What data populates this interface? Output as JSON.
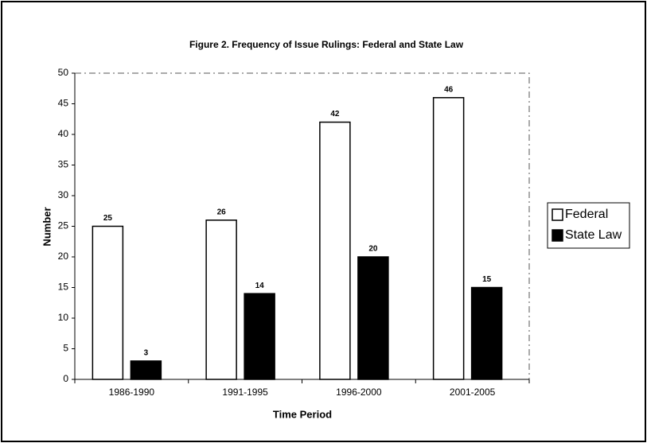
{
  "chart_data": {
    "type": "bar",
    "title": "Figure 2.  Frequency of Issue Rulings: Federal and State Law",
    "x_label": "Time Period",
    "y_label": "Number",
    "categories": [
      "1986-1990",
      "1991-1995",
      "1996-2000",
      "2001-2005"
    ],
    "series": [
      {
        "name": "Federal",
        "color": "#ffffff",
        "values": [
          25,
          26,
          42,
          46
        ]
      },
      {
        "name": "State Law",
        "color": "#000000",
        "values": [
          3,
          14,
          20,
          15
        ]
      }
    ],
    "ylim": [
      0,
      50
    ],
    "yticks": [
      0,
      5,
      10,
      15,
      20,
      25,
      30,
      35,
      40,
      45,
      50
    ],
    "legend": "right"
  }
}
